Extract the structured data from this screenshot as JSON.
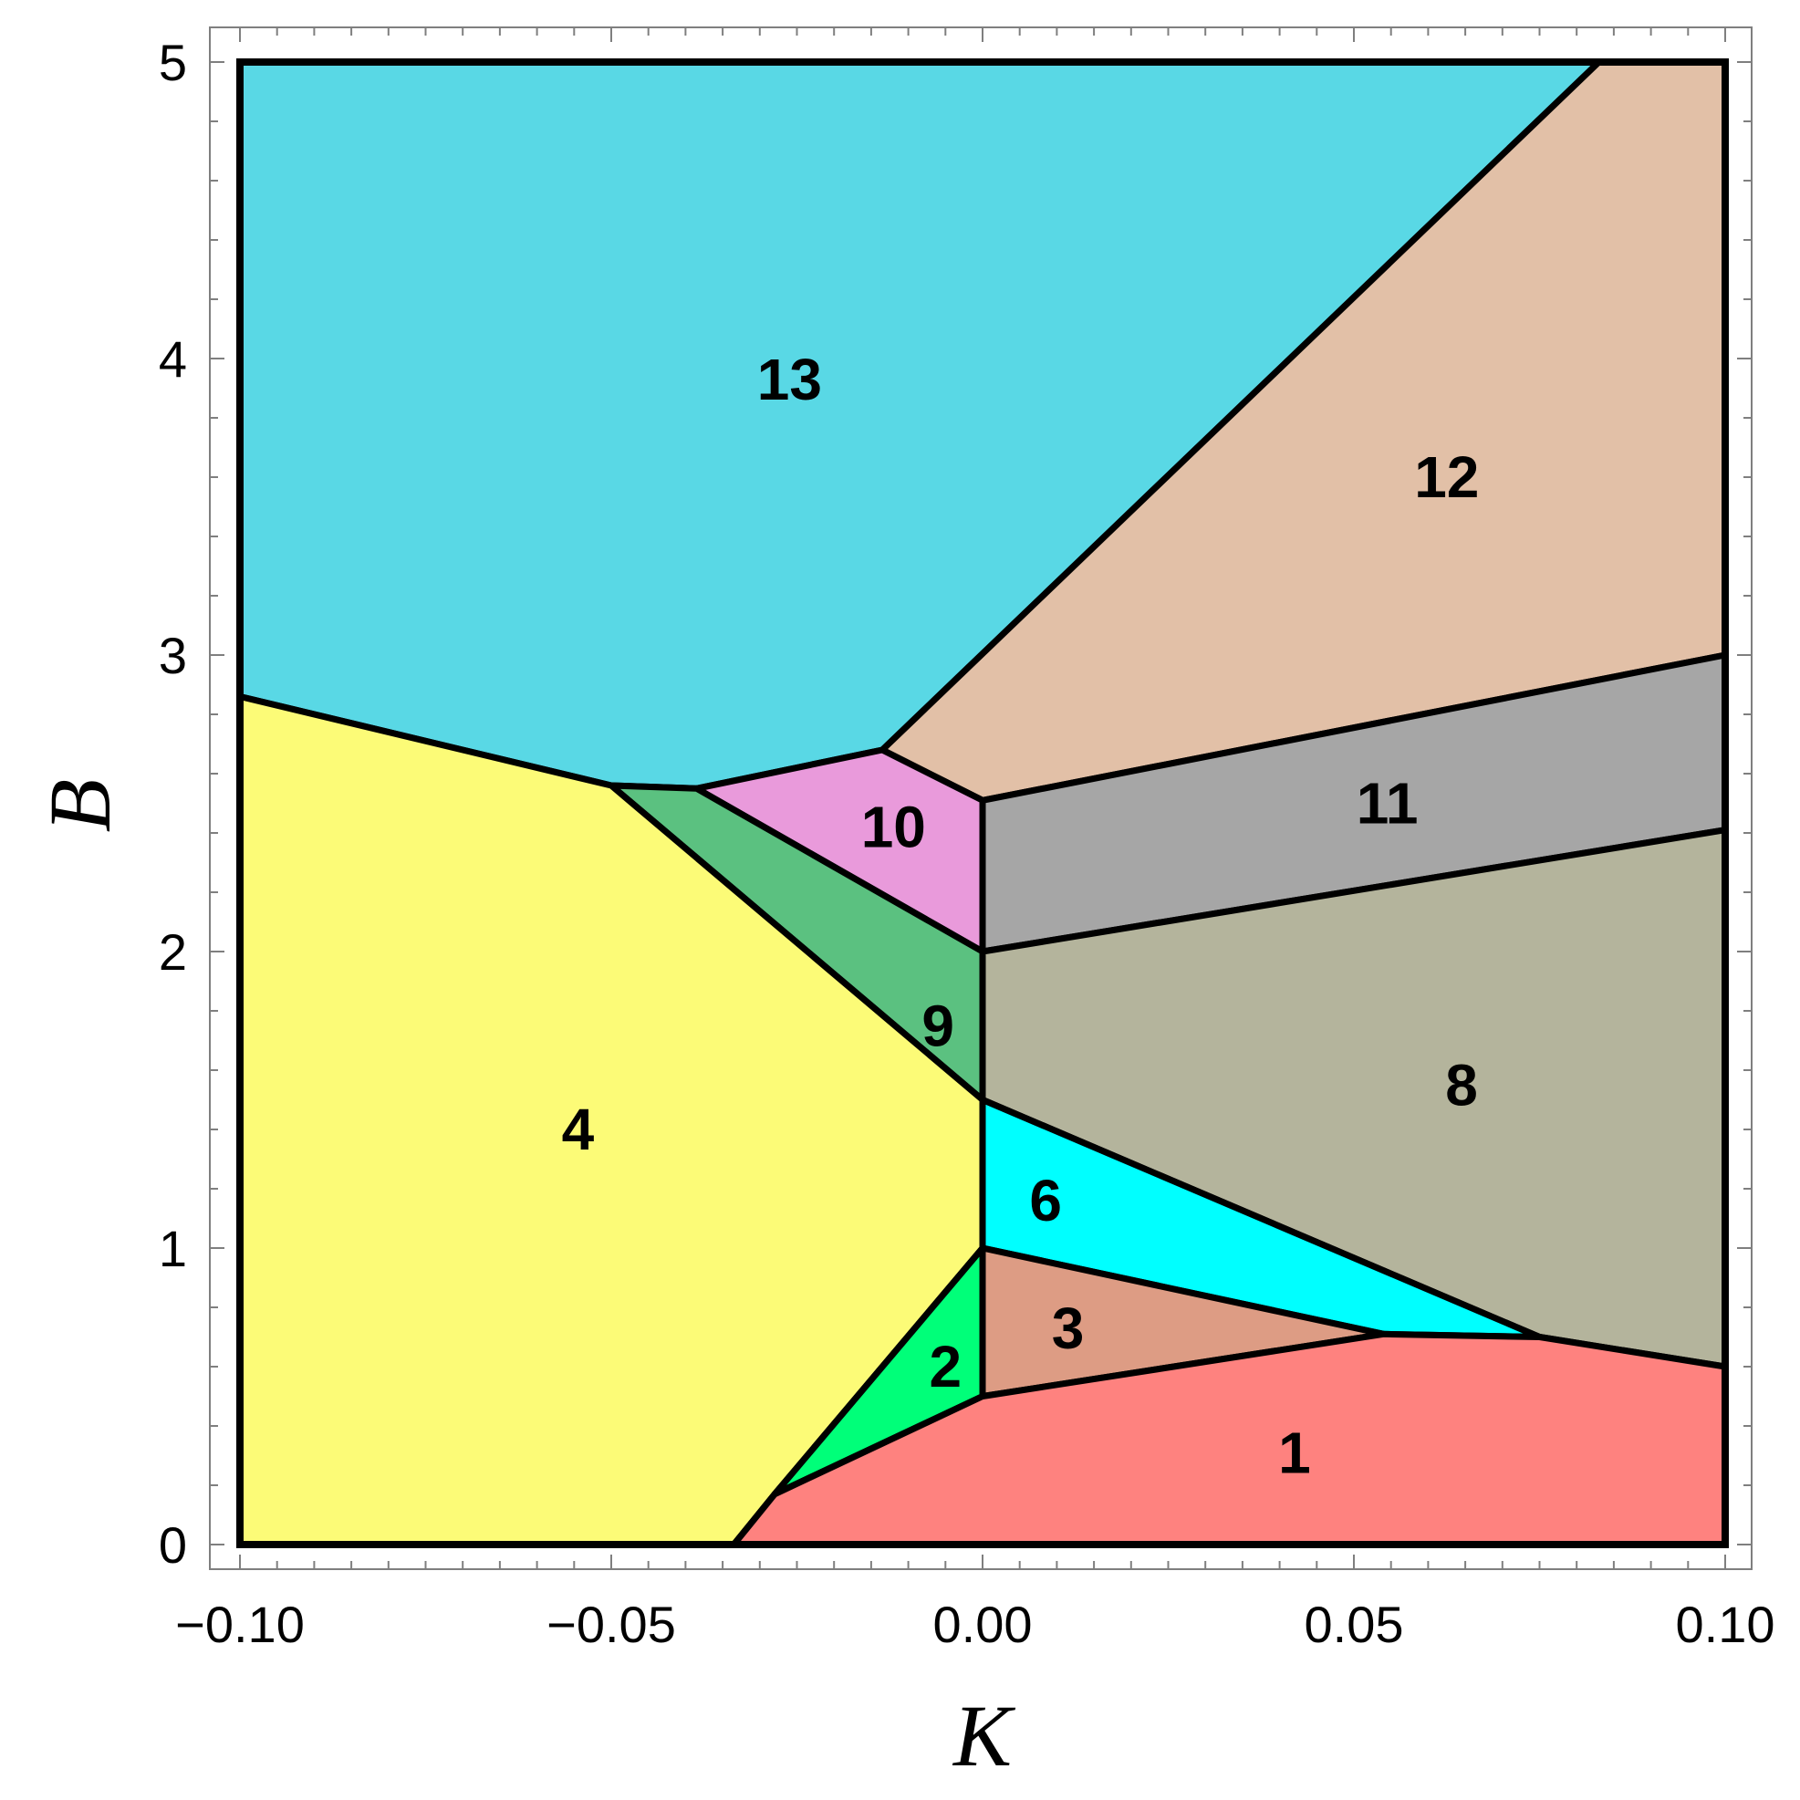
{
  "chart_data": {
    "type": "region-map",
    "xlabel": "K",
    "ylabel": "B",
    "xlim": [
      -0.1,
      0.1
    ],
    "ylim": [
      0,
      5
    ],
    "x_ticks": [
      {
        "value": -0.1,
        "label": "−0.10"
      },
      {
        "value": -0.05,
        "label": "−0.05"
      },
      {
        "value": 0.0,
        "label": "0.00"
      },
      {
        "value": 0.05,
        "label": "0.05"
      },
      {
        "value": 0.1,
        "label": "0.10"
      }
    ],
    "y_ticks": [
      {
        "value": 0,
        "label": "0"
      },
      {
        "value": 1,
        "label": "1"
      },
      {
        "value": 2,
        "label": "2"
      },
      {
        "value": 3,
        "label": "3"
      },
      {
        "value": 4,
        "label": "4"
      },
      {
        "value": 5,
        "label": "5"
      }
    ],
    "regions": [
      {
        "label": "13",
        "color": "#59D8E5",
        "label_at": [
          -0.026,
          3.93
        ],
        "points": [
          [
            -0.1,
            5
          ],
          [
            0.083,
            5
          ],
          [
            -0.0135,
            2.68
          ],
          [
            -0.0385,
            2.55
          ],
          [
            -0.05,
            2.56
          ],
          [
            -0.1,
            2.86
          ]
        ]
      },
      {
        "label": "12",
        "color": "#E2C0A7",
        "label_at": [
          0.0625,
          3.6
        ],
        "points": [
          [
            0.083,
            5
          ],
          [
            0.1,
            5
          ],
          [
            0.1,
            3.0
          ],
          [
            0,
            2.51
          ],
          [
            -0.0135,
            2.68
          ]
        ]
      },
      {
        "label": "10",
        "color": "#E99ADB",
        "label_at": [
          -0.012,
          2.42
        ],
        "points": [
          [
            -0.0385,
            2.55
          ],
          [
            -0.0135,
            2.68
          ],
          [
            0,
            2.51
          ],
          [
            0,
            2.0
          ]
        ]
      },
      {
        "label": "9",
        "color": "#5BC180",
        "label_at": [
          -0.006,
          1.75
        ],
        "points": [
          [
            -0.05,
            2.56
          ],
          [
            -0.0385,
            2.55
          ],
          [
            0,
            2.0
          ],
          [
            0,
            1.5
          ]
        ]
      },
      {
        "label": "11",
        "color": "#A6A6A6",
        "label_at": [
          0.0545,
          2.5
        ],
        "points": [
          [
            0,
            2.51
          ],
          [
            0.1,
            3.0
          ],
          [
            0.1,
            2.41
          ],
          [
            0,
            2.0
          ]
        ]
      },
      {
        "label": "8",
        "color": "#B4B49C",
        "label_at": [
          0.0645,
          1.55
        ],
        "points": [
          [
            0,
            2.0
          ],
          [
            0.1,
            2.41
          ],
          [
            0.1,
            0.6
          ],
          [
            0.075,
            0.7
          ],
          [
            0,
            1.5
          ]
        ]
      },
      {
        "label": "4",
        "color": "#FCFB77",
        "label_at": [
          -0.0545,
          1.4
        ],
        "points": [
          [
            -0.1,
            2.86
          ],
          [
            -0.05,
            2.56
          ],
          [
            0,
            1.5
          ],
          [
            0,
            1.0
          ],
          [
            -0.028,
            0.17
          ],
          [
            -0.0335,
            0
          ],
          [
            -0.1,
            0
          ]
        ]
      },
      {
        "label": "6",
        "color": "#00FFFF",
        "label_at": [
          0.0085,
          1.16
        ],
        "points": [
          [
            0,
            1.5
          ],
          [
            0.075,
            0.7
          ],
          [
            0.054,
            0.71
          ],
          [
            0,
            1.0
          ]
        ]
      },
      {
        "label": "3",
        "color": "#DD9C84",
        "label_at": [
          0.0115,
          0.73
        ],
        "points": [
          [
            0,
            1.0
          ],
          [
            0.054,
            0.71
          ],
          [
            0,
            0.5
          ]
        ]
      },
      {
        "label": "2",
        "color": "#00FF79",
        "label_at": [
          -0.005,
          0.6
        ],
        "points": [
          [
            0,
            1.0
          ],
          [
            0,
            0.5
          ],
          [
            -0.028,
            0.17
          ]
        ]
      },
      {
        "label": "1",
        "color": "#FE827F",
        "label_at": [
          0.042,
          0.31
        ],
        "points": [
          [
            -0.0335,
            0
          ],
          [
            -0.028,
            0.17
          ],
          [
            0,
            0.5
          ],
          [
            0.054,
            0.71
          ],
          [
            0.075,
            0.7
          ],
          [
            0.1,
            0.6
          ],
          [
            0.1,
            0
          ]
        ]
      }
    ]
  }
}
